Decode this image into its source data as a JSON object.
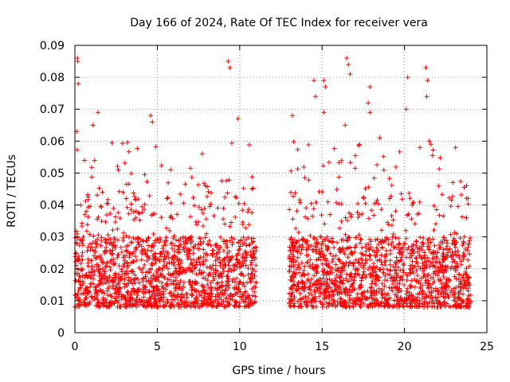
{
  "chart_data": {
    "type": "scatter",
    "title": "Day 166 of 2024, Rate Of TEC Index for receiver vera",
    "xlabel": "GPS time / hours",
    "ylabel": "ROTI / TECUs",
    "xlim": [
      0,
      25
    ],
    "ylim": [
      0,
      0.09
    ],
    "xticks": [
      0,
      5,
      10,
      15,
      20,
      25
    ],
    "xtick_labels": [
      "0",
      "5",
      "10",
      "15",
      "20",
      "25"
    ],
    "yticks": [
      0,
      0.01,
      0.02,
      0.03,
      0.04,
      0.05,
      0.06,
      0.07,
      0.08,
      0.09
    ],
    "ytick_labels": [
      "0",
      "0.01",
      "0.02",
      "0.03",
      "0.04",
      "0.05",
      "0.06",
      "0.07",
      "0.08",
      "0.09"
    ],
    "grid": true,
    "marker": "+",
    "series": [
      {
        "name": "ROTI",
        "color": "#ff0000",
        "segments": [
          [
            0.0,
            11.0
          ],
          [
            13.0,
            24.0
          ]
        ],
        "typical_range": [
          0.008,
          0.03
        ],
        "seed": 166,
        "n_points": 3000,
        "outliers": [
          {
            "x": 0.15,
            "y": 0.086
          },
          {
            "x": 0.18,
            "y": 0.085
          },
          {
            "x": 0.2,
            "y": 0.078
          },
          {
            "x": 0.1,
            "y": 0.063
          },
          {
            "x": 1.4,
            "y": 0.069
          },
          {
            "x": 1.1,
            "y": 0.065
          },
          {
            "x": 4.6,
            "y": 0.068
          },
          {
            "x": 4.7,
            "y": 0.066
          },
          {
            "x": 9.3,
            "y": 0.085
          },
          {
            "x": 9.4,
            "y": 0.083
          },
          {
            "x": 9.9,
            "y": 0.067
          },
          {
            "x": 13.2,
            "y": 0.068
          },
          {
            "x": 14.5,
            "y": 0.079
          },
          {
            "x": 14.6,
            "y": 0.074
          },
          {
            "x": 15.1,
            "y": 0.079
          },
          {
            "x": 15.2,
            "y": 0.077
          },
          {
            "x": 15.1,
            "y": 0.069
          },
          {
            "x": 16.5,
            "y": 0.086
          },
          {
            "x": 16.6,
            "y": 0.084
          },
          {
            "x": 16.7,
            "y": 0.081
          },
          {
            "x": 16.4,
            "y": 0.065
          },
          {
            "x": 17.9,
            "y": 0.077
          },
          {
            "x": 17.8,
            "y": 0.072
          },
          {
            "x": 17.9,
            "y": 0.069
          },
          {
            "x": 18.5,
            "y": 0.061
          },
          {
            "x": 20.2,
            "y": 0.08
          },
          {
            "x": 20.1,
            "y": 0.07
          },
          {
            "x": 21.3,
            "y": 0.083
          },
          {
            "x": 21.4,
            "y": 0.079
          },
          {
            "x": 21.35,
            "y": 0.074
          },
          {
            "x": 21.5,
            "y": 0.06
          },
          {
            "x": 21.6,
            "y": 0.059
          },
          {
            "x": 23.1,
            "y": 0.058
          }
        ]
      }
    ]
  }
}
